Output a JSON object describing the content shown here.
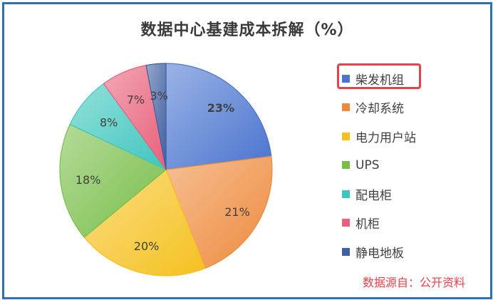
{
  "chart_data": {
    "type": "pie",
    "title": "数据中心基建成本拆解（%）",
    "categories": [
      "柴发机组",
      "冷却系统",
      "电力用户站",
      "UPS",
      "配电柜",
      "机柜",
      "静电地板"
    ],
    "values": [
      23,
      21,
      20,
      18,
      8,
      7,
      3
    ],
    "labels": [
      "23%",
      "21%",
      "20%",
      "18%",
      "8%",
      "7%",
      "3%"
    ],
    "colors": [
      "#4a74cf",
      "#ee8a3c",
      "#f5c11f",
      "#78be48",
      "#3ec6be",
      "#e8607a",
      "#3f5fa0"
    ],
    "legend_position": "right",
    "highlighted_legend_item": "柴发机组",
    "highlight_color": "#e8414a"
  },
  "source_note": "数据源自：公开资料",
  "frame_color": "#2f6fb5"
}
